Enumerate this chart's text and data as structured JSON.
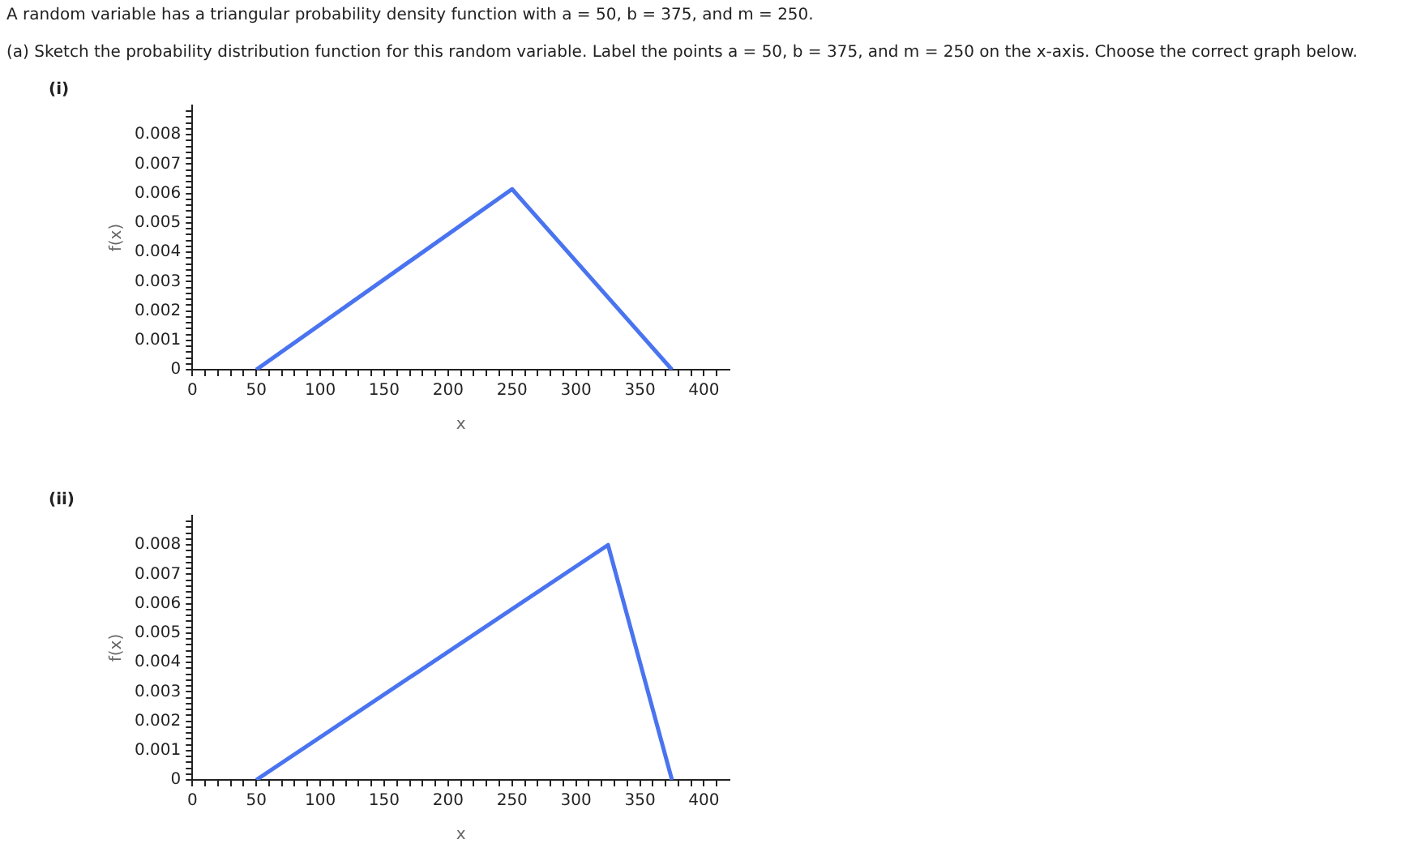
{
  "chart_data": [
    {
      "type": "line",
      "title": "(i)",
      "xlabel": "x",
      "ylabel": "f(x)",
      "annotations": [
        "A random variable has a triangular probability density function with a = 50, b = 375, and m = 250.",
        "(a) Sketch the probability distribution function for this random variable. Label the points a = 50, b = 375, and m = 250 on the x-axis. Choose the correct graph below."
      ],
      "x": [
        50,
        250,
        375
      ],
      "series": [
        {
          "color": "#4a74ef",
          "values": [
            0,
            0.00615,
            0
          ]
        }
      ],
      "xlim": [
        0,
        420
      ],
      "ylim": [
        0,
        0.009
      ],
      "xticks": [
        0,
        {
          "value": 10,
          "label": null
        },
        {
          "value": 20,
          "label": null
        },
        {
          "value": 30,
          "label": null
        },
        {
          "value": 40,
          "label": null
        },
        50,
        {
          "value": 60,
          "label": null
        },
        {
          "value": 70,
          "label": null
        },
        {
          "value": 80,
          "label": null
        },
        {
          "value": 90,
          "label": null
        },
        100,
        {
          "value": 110,
          "label": null
        },
        {
          "value": 120,
          "label": null
        },
        {
          "value": 130,
          "label": null
        },
        {
          "value": 140,
          "label": null
        },
        150,
        {
          "value": 160,
          "label": null
        },
        {
          "value": 170,
          "label": null
        },
        {
          "value": 180,
          "label": null
        },
        {
          "value": 190,
          "label": null
        },
        200,
        {
          "value": 210,
          "label": null
        },
        {
          "value": 220,
          "label": null
        },
        {
          "value": 230,
          "label": null
        },
        {
          "value": 240,
          "label": null
        },
        250,
        {
          "value": 260,
          "label": null
        },
        {
          "value": 270,
          "label": null
        },
        {
          "value": 280,
          "label": null
        },
        {
          "value": 290,
          "label": null
        },
        300,
        {
          "value": 310,
          "label": null
        },
        {
          "value": 320,
          "label": null
        },
        {
          "value": 330,
          "label": null
        },
        {
          "value": 340,
          "label": null
        },
        350,
        {
          "value": 360,
          "label": null
        },
        {
          "value": 370,
          "label": null
        },
        {
          "value": 380,
          "label": null
        },
        {
          "value": 390,
          "label": null
        },
        400,
        {
          "value": 410,
          "label": null
        }
      ],
      "yticks": [
        0,
        {
          "value": 0.0002,
          "label": null
        },
        {
          "value": 0.0004,
          "label": null
        },
        {
          "value": 0.0006,
          "label": null
        },
        {
          "value": 0.0008,
          "label": null
        },
        0.001,
        {
          "value": 0.0012,
          "label": null
        },
        {
          "value": 0.0014,
          "label": null
        },
        {
          "value": 0.0016,
          "label": null
        },
        {
          "value": 0.0018,
          "label": null
        },
        0.002,
        {
          "value": 0.0022,
          "label": null
        },
        {
          "value": 0.0024,
          "label": null
        },
        {
          "value": 0.0026,
          "label": null
        },
        {
          "value": 0.0028,
          "label": null
        },
        0.003,
        {
          "value": 0.0032,
          "label": null
        },
        {
          "value": 0.0034,
          "label": null
        },
        {
          "value": 0.0036,
          "label": null
        },
        {
          "value": 0.0038,
          "label": null
        },
        0.004,
        {
          "value": 0.0042,
          "label": null
        },
        {
          "value": 0.0044,
          "label": null
        },
        {
          "value": 0.0046,
          "label": null
        },
        {
          "value": 0.0048,
          "label": null
        },
        0.005,
        {
          "value": 0.0052,
          "label": null
        },
        {
          "value": 0.0054,
          "label": null
        },
        {
          "value": 0.0056,
          "label": null
        },
        {
          "value": 0.0058,
          "label": null
        },
        0.006,
        {
          "value": 0.0062,
          "label": null
        },
        {
          "value": 0.0064,
          "label": null
        },
        {
          "value": 0.0066,
          "label": null
        },
        {
          "value": 0.0068,
          "label": null
        },
        0.007,
        {
          "value": 0.0072,
          "label": null
        },
        {
          "value": 0.0074,
          "label": null
        },
        {
          "value": 0.0076,
          "label": null
        },
        {
          "value": 0.0078,
          "label": null
        },
        0.008,
        {
          "value": 0.0082,
          "label": null
        },
        {
          "value": 0.0084,
          "label": null
        },
        {
          "value": 0.0086,
          "label": null
        },
        {
          "value": 0.0088,
          "label": null
        }
      ],
      "grid": false,
      "legend": false,
      "marker": "none",
      "line_style": "solid"
    },
    {
      "type": "line",
      "title": "(ii)",
      "xlabel": "x",
      "ylabel": "f(x)",
      "x": [
        50,
        325,
        375
      ],
      "series": [
        {
          "color": "#4a74ef",
          "values": [
            0,
            0.008,
            0
          ]
        }
      ],
      "xlim": [
        0,
        420
      ],
      "ylim": [
        0,
        0.009
      ],
      "xticks": [
        0,
        {
          "value": 10,
          "label": null
        },
        {
          "value": 20,
          "label": null
        },
        {
          "value": 30,
          "label": null
        },
        {
          "value": 40,
          "label": null
        },
        50,
        {
          "value": 60,
          "label": null
        },
        {
          "value": 70,
          "label": null
        },
        {
          "value": 80,
          "label": null
        },
        {
          "value": 90,
          "label": null
        },
        100,
        {
          "value": 110,
          "label": null
        },
        {
          "value": 120,
          "label": null
        },
        {
          "value": 130,
          "label": null
        },
        {
          "value": 140,
          "label": null
        },
        150,
        {
          "value": 160,
          "label": null
        },
        {
          "value": 170,
          "label": null
        },
        {
          "value": 180,
          "label": null
        },
        {
          "value": 190,
          "label": null
        },
        200,
        {
          "value": 210,
          "label": null
        },
        {
          "value": 220,
          "label": null
        },
        {
          "value": 230,
          "label": null
        },
        {
          "value": 240,
          "label": null
        },
        250,
        {
          "value": 260,
          "label": null
        },
        {
          "value": 270,
          "label": null
        },
        {
          "value": 280,
          "label": null
        },
        {
          "value": 290,
          "label": null
        },
        300,
        {
          "value": 310,
          "label": null
        },
        {
          "value": 320,
          "label": null
        },
        {
          "value": 330,
          "label": null
        },
        {
          "value": 340,
          "label": null
        },
        350,
        {
          "value": 360,
          "label": null
        },
        {
          "value": 370,
          "label": null
        },
        {
          "value": 380,
          "label": null
        },
        {
          "value": 390,
          "label": null
        },
        400,
        {
          "value": 410,
          "label": null
        }
      ],
      "yticks": [
        0,
        {
          "value": 0.0002,
          "label": null
        },
        {
          "value": 0.0004,
          "label": null
        },
        {
          "value": 0.0006,
          "label": null
        },
        {
          "value": 0.0008,
          "label": null
        },
        0.001,
        {
          "value": 0.0012,
          "label": null
        },
        {
          "value": 0.0014,
          "label": null
        },
        {
          "value": 0.0016,
          "label": null
        },
        {
          "value": 0.0018,
          "label": null
        },
        0.002,
        {
          "value": 0.0022,
          "label": null
        },
        {
          "value": 0.0024,
          "label": null
        },
        {
          "value": 0.0026,
          "label": null
        },
        {
          "value": 0.0028,
          "label": null
        },
        0.003,
        {
          "value": 0.0032,
          "label": null
        },
        {
          "value": 0.0034,
          "label": null
        },
        {
          "value": 0.0036,
          "label": null
        },
        {
          "value": 0.0038,
          "label": null
        },
        0.004,
        {
          "value": 0.0042,
          "label": null
        },
        {
          "value": 0.0044,
          "label": null
        },
        {
          "value": 0.0046,
          "label": null
        },
        {
          "value": 0.0048,
          "label": null
        },
        0.005,
        {
          "value": 0.0052,
          "label": null
        },
        {
          "value": 0.0054,
          "label": null
        },
        {
          "value": 0.0056,
          "label": null
        },
        {
          "value": 0.0058,
          "label": null
        },
        0.006,
        {
          "value": 0.0062,
          "label": null
        },
        {
          "value": 0.0064,
          "label": null
        },
        {
          "value": 0.0066,
          "label": null
        },
        {
          "value": 0.0068,
          "label": null
        },
        0.007,
        {
          "value": 0.0072,
          "label": null
        },
        {
          "value": 0.0074,
          "label": null
        },
        {
          "value": 0.0076,
          "label": null
        },
        {
          "value": 0.0078,
          "label": null
        },
        0.008,
        {
          "value": 0.0082,
          "label": null
        },
        {
          "value": 0.0084,
          "label": null
        },
        {
          "value": 0.0086,
          "label": null
        },
        {
          "value": 0.0088,
          "label": null
        }
      ],
      "grid": false,
      "legend": false,
      "marker": "none",
      "line_style": "solid"
    }
  ]
}
